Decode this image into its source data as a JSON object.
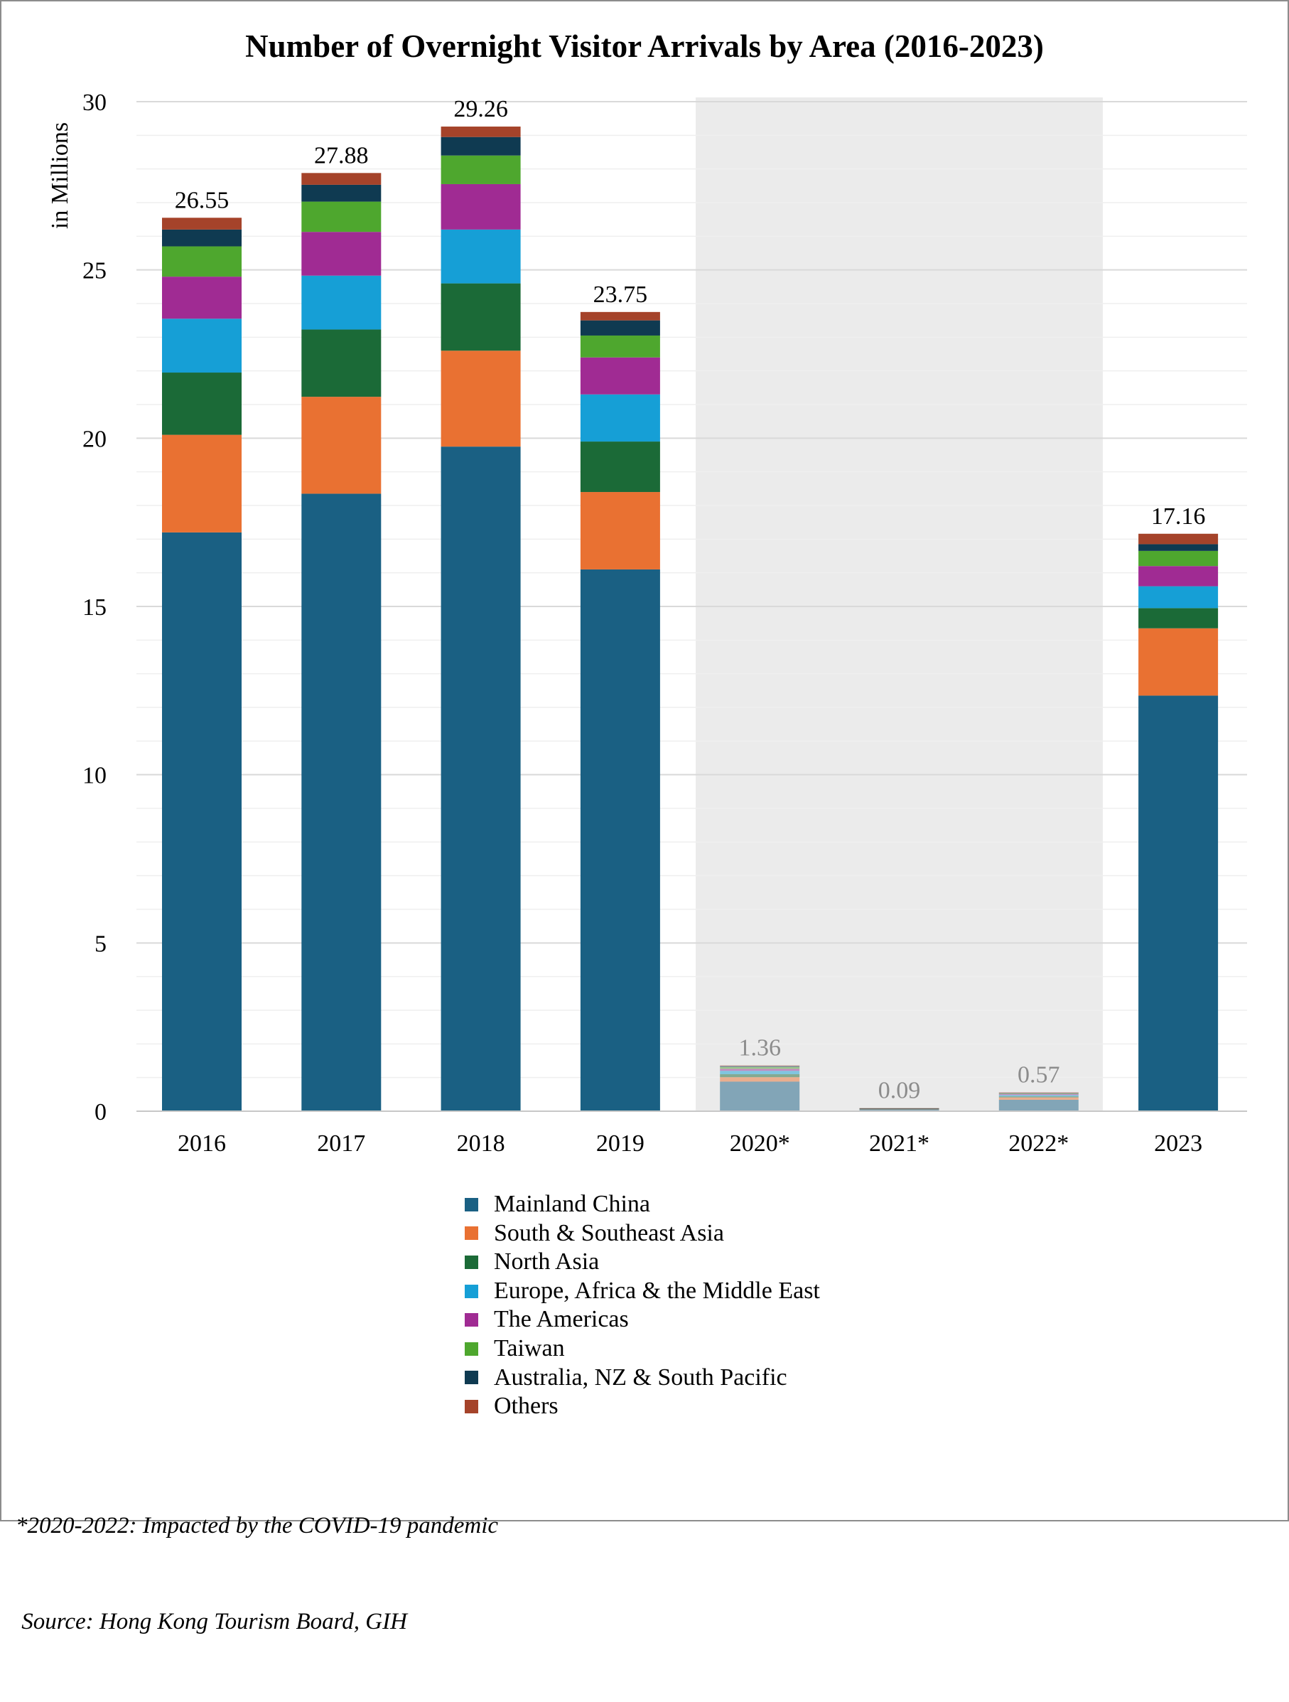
{
  "chart_data": {
    "type": "bar",
    "stacked": true,
    "title": "Number of Overnight Visitor Arrivals by Area (2016-2023)",
    "ylabel": "in Millions",
    "xlabel": "",
    "ylim": [
      0,
      30
    ],
    "yticks": [
      0,
      5,
      10,
      15,
      20,
      25,
      30
    ],
    "grid": true,
    "categories": [
      "2016",
      "2017",
      "2018",
      "2019",
      "2020*",
      "2021*",
      "2022*",
      "2023"
    ],
    "totals": [
      "26.55",
      "27.88",
      "29.26",
      "23.75",
      "1.36",
      "0.09",
      "0.57",
      "17.16"
    ],
    "highlight_band": {
      "categories": [
        "2020*",
        "2021*",
        "2022*"
      ],
      "meaning": "Impacted by the COVID-19 pandemic"
    },
    "series": [
      {
        "name": "Mainland China",
        "color": "#1a6083",
        "values": [
          17.2,
          18.35,
          19.75,
          16.1,
          0.88,
          0.06,
          0.34,
          12.35
        ]
      },
      {
        "name": "South & Southeast Asia",
        "color": "#e97132",
        "values": [
          2.9,
          2.88,
          2.85,
          2.3,
          0.13,
          0.01,
          0.07,
          2.0
        ]
      },
      {
        "name": "North Asia",
        "color": "#1b6a37",
        "values": [
          1.85,
          2.0,
          2.0,
          1.5,
          0.09,
          0.005,
          0.03,
          0.6
        ]
      },
      {
        "name": "Europe, Africa & the Middle East",
        "color": "#169fd6",
        "values": [
          1.6,
          1.6,
          1.6,
          1.4,
          0.1,
          0.005,
          0.04,
          0.65
        ]
      },
      {
        "name": "The Americas",
        "color": "#a02b93",
        "values": [
          1.25,
          1.3,
          1.35,
          1.1,
          0.06,
          0.003,
          0.03,
          0.6
        ]
      },
      {
        "name": "Taiwan",
        "color": "#4ea72e",
        "values": [
          0.9,
          0.9,
          0.85,
          0.65,
          0.05,
          0.003,
          0.02,
          0.45
        ]
      },
      {
        "name": "Australia, NZ & South Pacific",
        "color": "#0f3a51",
        "values": [
          0.5,
          0.5,
          0.55,
          0.45,
          0.03,
          0.002,
          0.01,
          0.2
        ]
      },
      {
        "name": "Others",
        "color": "#a5432a",
        "values": [
          0.35,
          0.35,
          0.31,
          0.25,
          0.02,
          0.002,
          0.02,
          0.31
        ]
      }
    ]
  },
  "footnote": {
    "line1": "*2020-2022: Impacted by the COVID-19 pandemic",
    "line2": " Source: Hong Kong Tourism Board, GIH"
  }
}
